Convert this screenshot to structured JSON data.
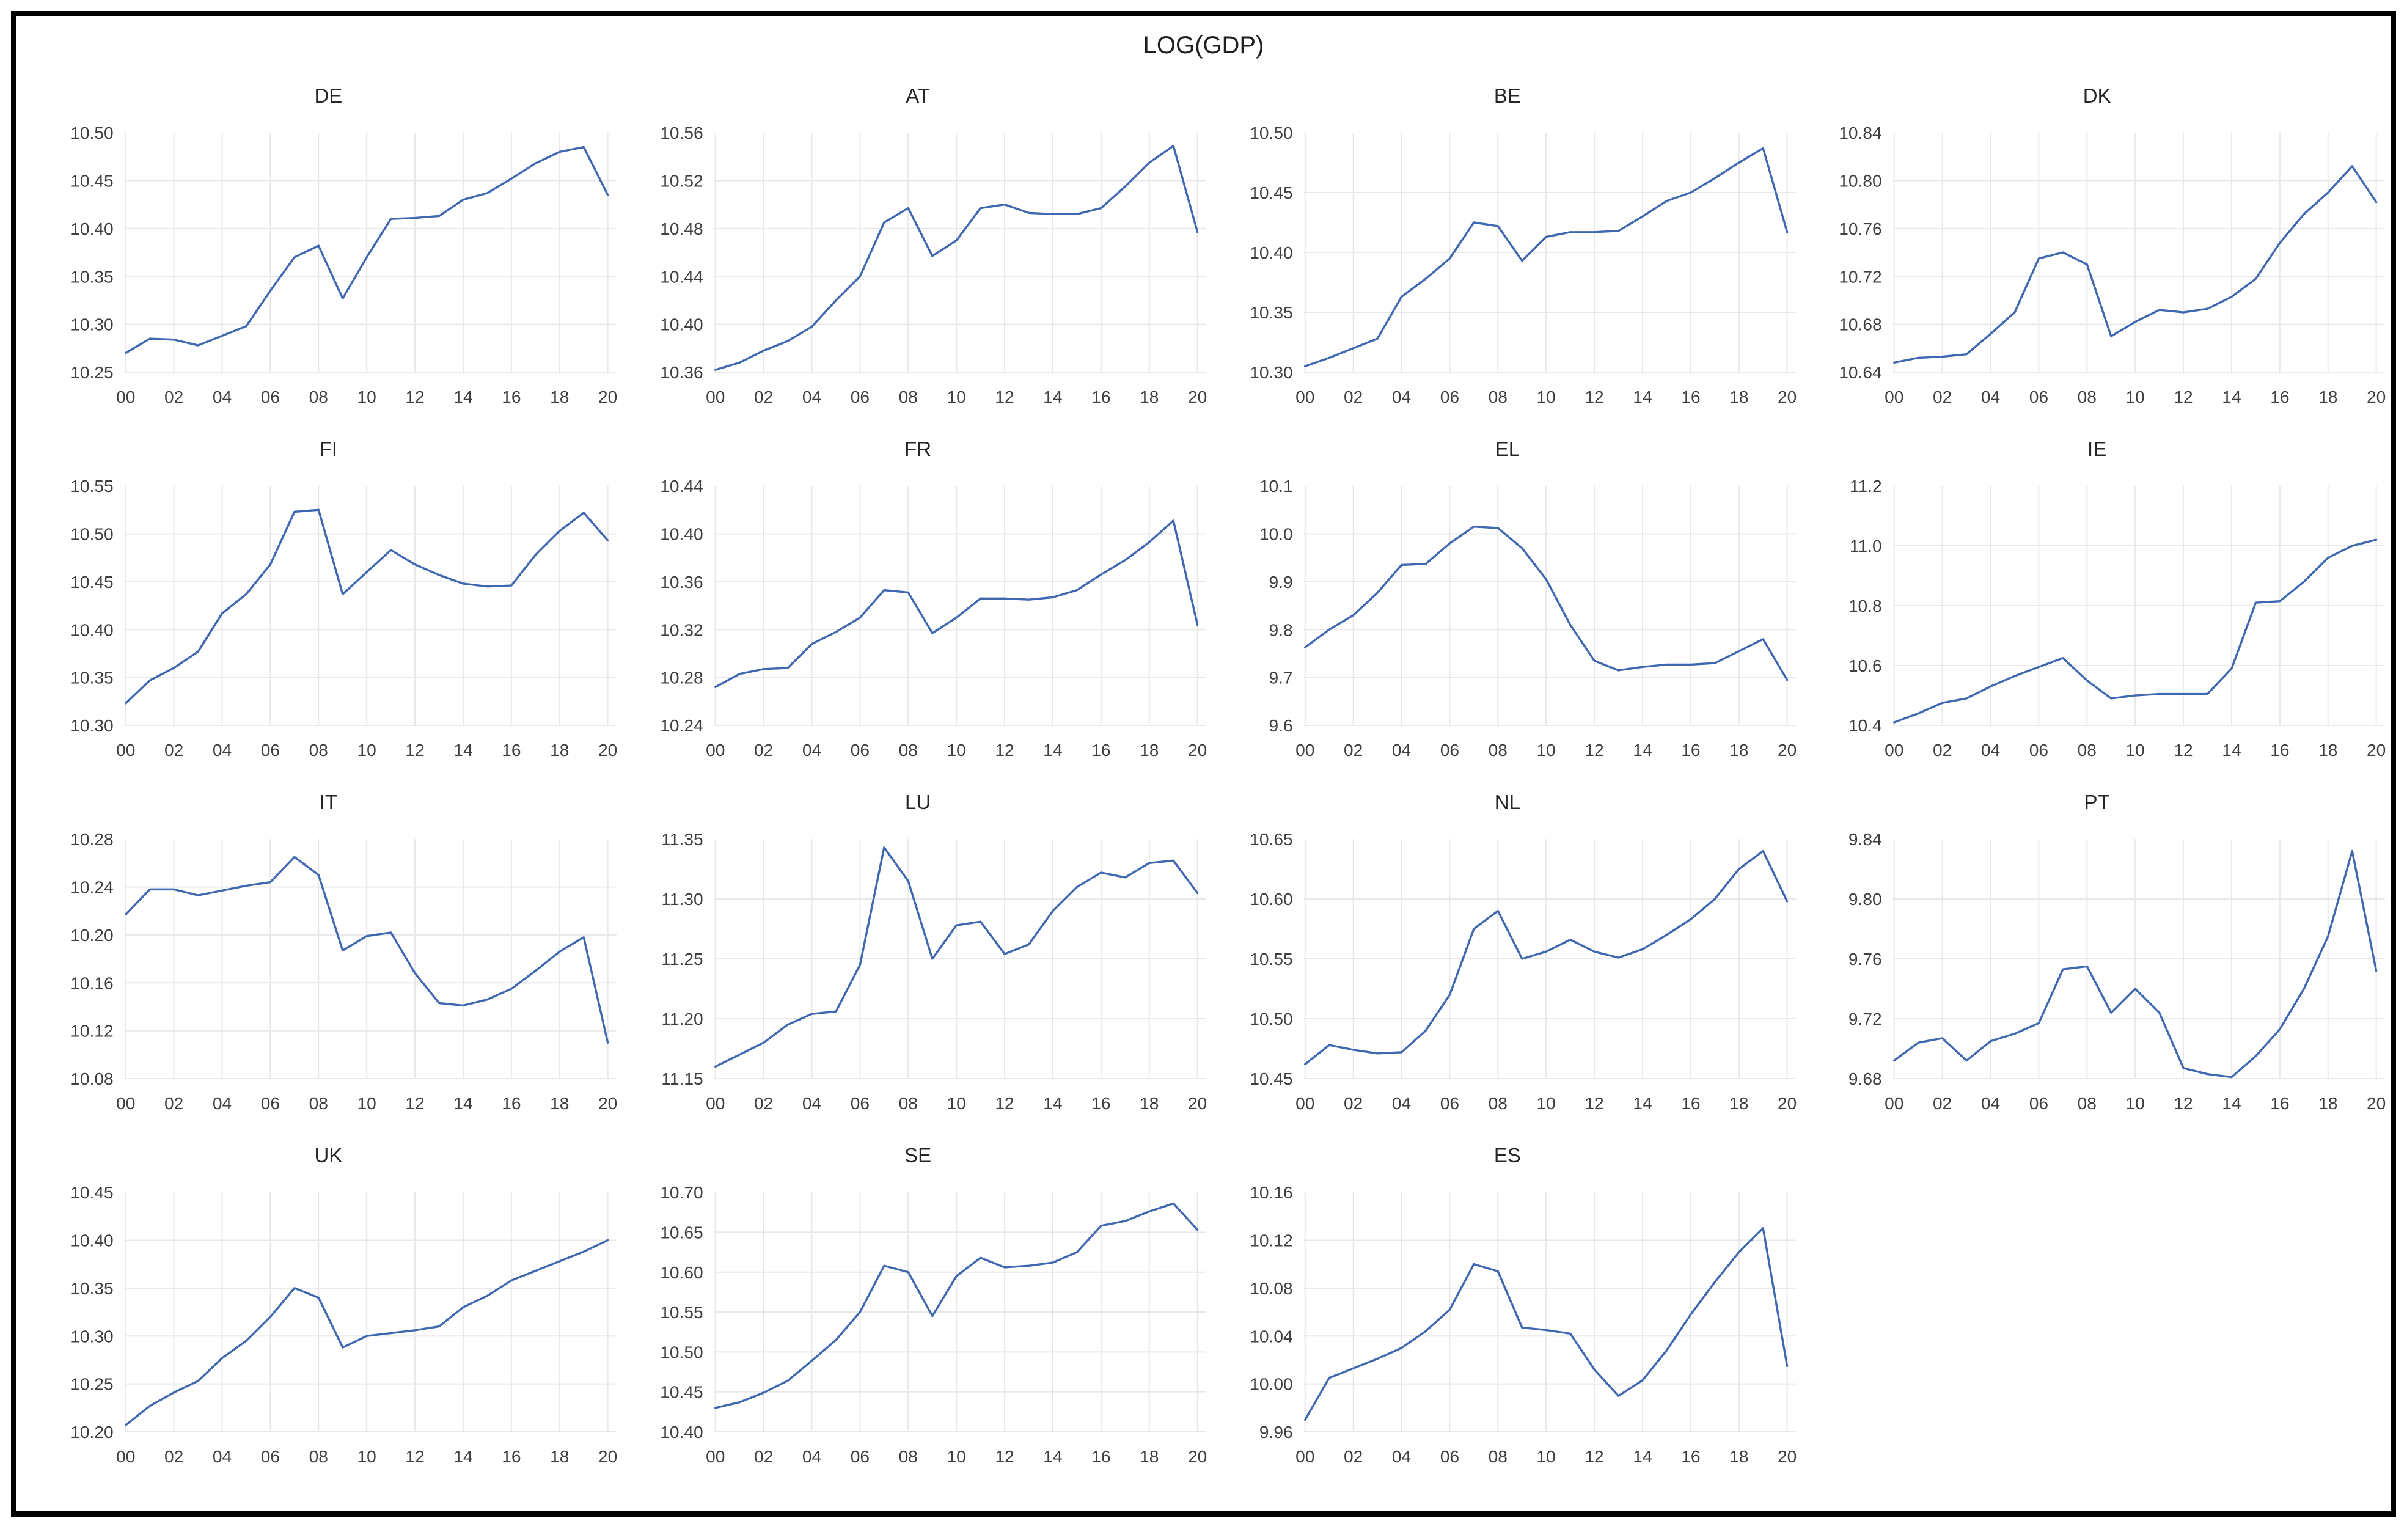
{
  "title": "LOG(GDP)",
  "line_color": "#3f68b1",
  "gridline_color": "#e8e8e8",
  "x_tick_labels": [
    "00",
    "02",
    "04",
    "06",
    "08",
    "10",
    "12",
    "14",
    "16",
    "18",
    "20"
  ],
  "chart_data": [
    {
      "type": "line",
      "title": "DE",
      "ylim": [
        10.25,
        10.5
      ],
      "y_ticks": [
        10.25,
        10.3,
        10.35,
        10.4,
        10.45,
        10.5
      ],
      "y_tick_labels": [
        "10.25",
        "10.30",
        "10.35",
        "10.40",
        "10.45",
        "10.50"
      ],
      "values": [
        10.27,
        10.285,
        10.284,
        10.278,
        10.288,
        10.298,
        10.335,
        10.37,
        10.382,
        10.327,
        10.37,
        10.41,
        10.411,
        10.413,
        10.43,
        10.437,
        10.452,
        10.468,
        10.48,
        10.485,
        10.435
      ]
    },
    {
      "type": "line",
      "title": "AT",
      "ylim": [
        10.36,
        10.56
      ],
      "y_ticks": [
        10.36,
        10.4,
        10.44,
        10.48,
        10.52,
        10.56
      ],
      "y_tick_labels": [
        "10.36",
        "10.40",
        "10.44",
        "10.48",
        "10.52",
        "10.56"
      ],
      "values": [
        10.362,
        10.368,
        10.378,
        10.386,
        10.398,
        10.42,
        10.44,
        10.485,
        10.497,
        10.457,
        10.47,
        10.497,
        10.5,
        10.493,
        10.492,
        10.492,
        10.497,
        10.515,
        10.535,
        10.549,
        10.477
      ]
    },
    {
      "type": "line",
      "title": "BE",
      "ylim": [
        10.3,
        10.5
      ],
      "y_ticks": [
        10.3,
        10.35,
        10.4,
        10.45,
        10.5
      ],
      "y_tick_labels": [
        "10.30",
        "10.35",
        "10.40",
        "10.45",
        "10.50"
      ],
      "values": [
        10.305,
        10.312,
        10.32,
        10.328,
        10.363,
        10.378,
        10.395,
        10.425,
        10.422,
        10.393,
        10.413,
        10.417,
        10.417,
        10.418,
        10.43,
        10.443,
        10.45,
        10.462,
        10.475,
        10.487,
        10.417
      ]
    },
    {
      "type": "line",
      "title": "DK",
      "ylim": [
        10.64,
        10.84
      ],
      "y_ticks": [
        10.64,
        10.68,
        10.72,
        10.76,
        10.8,
        10.84
      ],
      "y_tick_labels": [
        "10.64",
        "10.68",
        "10.72",
        "10.76",
        "10.80",
        "10.84"
      ],
      "values": [
        10.648,
        10.652,
        10.653,
        10.655,
        10.672,
        10.69,
        10.735,
        10.74,
        10.73,
        10.67,
        10.682,
        10.692,
        10.69,
        10.693,
        10.703,
        10.718,
        10.748,
        10.772,
        10.79,
        10.812,
        10.782
      ]
    },
    {
      "type": "line",
      "title": "FI",
      "ylim": [
        10.3,
        10.55
      ],
      "y_ticks": [
        10.3,
        10.35,
        10.4,
        10.45,
        10.5,
        10.55
      ],
      "y_tick_labels": [
        "10.30",
        "10.35",
        "10.40",
        "10.45",
        "10.50",
        "10.55"
      ],
      "values": [
        10.323,
        10.347,
        10.36,
        10.377,
        10.417,
        10.437,
        10.468,
        10.523,
        10.525,
        10.437,
        10.46,
        10.483,
        10.468,
        10.457,
        10.448,
        10.445,
        10.446,
        10.478,
        10.503,
        10.522,
        10.493
      ]
    },
    {
      "type": "line",
      "title": "FR",
      "ylim": [
        10.24,
        10.44
      ],
      "y_ticks": [
        10.24,
        10.28,
        10.32,
        10.36,
        10.4,
        10.44
      ],
      "y_tick_labels": [
        "10.24",
        "10.28",
        "10.32",
        "10.36",
        "10.40",
        "10.44"
      ],
      "values": [
        10.272,
        10.283,
        10.287,
        10.288,
        10.308,
        10.318,
        10.33,
        10.353,
        10.351,
        10.317,
        10.33,
        10.346,
        10.346,
        10.345,
        10.347,
        10.353,
        10.366,
        10.378,
        10.393,
        10.411,
        10.324
      ]
    },
    {
      "type": "line",
      "title": "EL",
      "ylim": [
        9.6,
        10.1
      ],
      "y_ticks": [
        9.6,
        9.7,
        9.8,
        9.9,
        10.0,
        10.1
      ],
      "y_tick_labels": [
        "9.6",
        "9.7",
        "9.8",
        "9.9",
        "10.0",
        "10.1"
      ],
      "values": [
        9.763,
        9.8,
        9.83,
        9.877,
        9.935,
        9.937,
        9.98,
        10.015,
        10.012,
        9.97,
        9.905,
        9.81,
        9.735,
        9.715,
        9.722,
        9.727,
        9.727,
        9.73,
        9.755,
        9.78,
        9.695
      ]
    },
    {
      "type": "line",
      "title": "IE",
      "ylim": [
        10.4,
        11.2
      ],
      "y_ticks": [
        10.4,
        10.6,
        10.8,
        11.0,
        11.2
      ],
      "y_tick_labels": [
        "10.4",
        "10.6",
        "10.8",
        "11.0",
        "11.2"
      ],
      "values": [
        10.41,
        10.44,
        10.475,
        10.49,
        10.53,
        10.565,
        10.595,
        10.625,
        10.55,
        10.49,
        10.5,
        10.505,
        10.505,
        10.505,
        10.59,
        10.81,
        10.815,
        10.88,
        10.96,
        11.0,
        11.02
      ]
    },
    {
      "type": "line",
      "title": "IT",
      "ylim": [
        10.08,
        10.28
      ],
      "y_ticks": [
        10.08,
        10.12,
        10.16,
        10.2,
        10.24,
        10.28
      ],
      "y_tick_labels": [
        "10.08",
        "10.12",
        "10.16",
        "10.20",
        "10.24",
        "10.28"
      ],
      "values": [
        10.217,
        10.238,
        10.238,
        10.233,
        10.237,
        10.241,
        10.244,
        10.265,
        10.25,
        10.187,
        10.199,
        10.202,
        10.168,
        10.143,
        10.141,
        10.146,
        10.155,
        10.17,
        10.186,
        10.198,
        10.11
      ]
    },
    {
      "type": "line",
      "title": "LU",
      "ylim": [
        11.15,
        11.35
      ],
      "y_ticks": [
        11.15,
        11.2,
        11.25,
        11.3,
        11.35
      ],
      "y_tick_labels": [
        "11.15",
        "11.20",
        "11.25",
        "11.30",
        "11.35"
      ],
      "values": [
        11.16,
        11.17,
        11.18,
        11.195,
        11.204,
        11.206,
        11.245,
        11.343,
        11.315,
        11.25,
        11.278,
        11.281,
        11.254,
        11.262,
        11.29,
        11.31,
        11.322,
        11.318,
        11.33,
        11.332,
        11.305
      ]
    },
    {
      "type": "line",
      "title": "NL",
      "ylim": [
        10.45,
        10.65
      ],
      "y_ticks": [
        10.45,
        10.5,
        10.55,
        10.6,
        10.65
      ],
      "y_tick_labels": [
        "10.45",
        "10.50",
        "10.55",
        "10.60",
        "10.65"
      ],
      "values": [
        10.462,
        10.478,
        10.474,
        10.471,
        10.472,
        10.49,
        10.52,
        10.575,
        10.59,
        10.55,
        10.556,
        10.566,
        10.556,
        10.551,
        10.558,
        10.57,
        10.583,
        10.6,
        10.625,
        10.64,
        10.598
      ]
    },
    {
      "type": "line",
      "title": "PT",
      "ylim": [
        9.68,
        9.84
      ],
      "y_ticks": [
        9.68,
        9.72,
        9.76,
        9.8,
        9.84
      ],
      "y_tick_labels": [
        "9.68",
        "9.72",
        "9.76",
        "9.80",
        "9.84"
      ],
      "values": [
        9.692,
        9.704,
        9.707,
        9.692,
        9.705,
        9.71,
        9.717,
        9.753,
        9.755,
        9.724,
        9.74,
        9.724,
        9.687,
        9.683,
        9.681,
        9.695,
        9.713,
        9.74,
        9.775,
        9.832,
        9.752
      ]
    },
    {
      "type": "line",
      "title": "UK",
      "ylim": [
        10.2,
        10.45
      ],
      "y_ticks": [
        10.2,
        10.25,
        10.3,
        10.35,
        10.4,
        10.45
      ],
      "y_tick_labels": [
        "10.20",
        "10.25",
        "10.30",
        "10.35",
        "10.40",
        "10.45"
      ],
      "values": [
        10.207,
        10.227,
        10.241,
        10.253,
        10.277,
        10.295,
        10.32,
        10.35,
        10.34,
        10.288,
        10.3,
        10.303,
        10.306,
        10.31,
        10.33,
        10.342,
        10.358,
        10.368,
        10.378,
        10.388,
        10.4
      ]
    },
    {
      "type": "line",
      "title": "SE",
      "ylim": [
        10.4,
        10.7
      ],
      "y_ticks": [
        10.4,
        10.45,
        10.5,
        10.55,
        10.6,
        10.65,
        10.7
      ],
      "y_tick_labels": [
        "10.40",
        "10.45",
        "10.50",
        "10.55",
        "10.60",
        "10.65",
        "10.70"
      ],
      "values": [
        10.43,
        10.437,
        10.449,
        10.464,
        10.489,
        10.515,
        10.55,
        10.608,
        10.6,
        10.545,
        10.595,
        10.618,
        10.606,
        10.608,
        10.612,
        10.625,
        10.658,
        10.664,
        10.676,
        10.686,
        10.653
      ]
    },
    {
      "type": "line",
      "title": "ES",
      "ylim": [
        9.96,
        10.16
      ],
      "y_ticks": [
        9.96,
        10.0,
        10.04,
        10.08,
        10.12,
        10.16
      ],
      "y_tick_labels": [
        "9.96",
        "10.00",
        "10.04",
        "10.08",
        "10.12",
        "10.16"
      ],
      "values": [
        9.97,
        10.005,
        10.013,
        10.021,
        10.03,
        10.044,
        10.062,
        10.1,
        10.094,
        10.047,
        10.045,
        10.042,
        10.012,
        9.99,
        10.003,
        10.028,
        10.058,
        10.085,
        10.11,
        10.13,
        10.015
      ]
    }
  ]
}
